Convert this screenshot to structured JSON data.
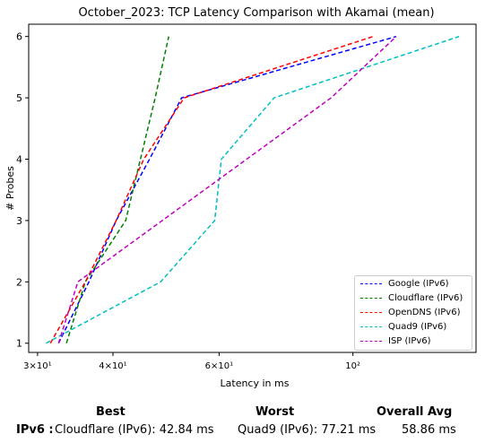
{
  "chart_data": {
    "type": "line",
    "title": "October_2023: TCP Latency Comparison with Akamai (mean)",
    "xlabel": "Latency in ms",
    "ylabel": "# Probes",
    "xscale": "log",
    "xlim": [
      29,
      160
    ],
    "ylim": [
      0.85,
      6.2
    ],
    "x_ticks": [
      {
        "value": 30,
        "label": "3×10¹"
      },
      {
        "value": 40,
        "label": "4×10¹"
      },
      {
        "value": 60,
        "label": "6×10¹"
      },
      {
        "value": 100,
        "label": "10²"
      }
    ],
    "y_ticks": [
      1,
      2,
      3,
      4,
      5,
      6
    ],
    "legend_position": "lower-right",
    "series": [
      {
        "name": "Google (IPv6)",
        "color": "#0000ff",
        "points": [
          [
            32.5,
            1
          ],
          [
            36.5,
            2
          ],
          [
            40.5,
            3
          ],
          [
            46,
            4
          ],
          [
            52,
            5
          ],
          [
            118,
            6
          ]
        ]
      },
      {
        "name": "Cloudflare (IPv6)",
        "color": "#008000",
        "points": [
          [
            33.5,
            1
          ],
          [
            36,
            2
          ],
          [
            42,
            3
          ],
          [
            47,
            5
          ],
          [
            49.5,
            6
          ]
        ]
      },
      {
        "name": "OpenDNS (IPv6)",
        "color": "#ff0000",
        "points": [
          [
            31.5,
            1
          ],
          [
            36,
            2
          ],
          [
            40.5,
            3
          ],
          [
            45,
            4
          ],
          [
            52.5,
            5
          ],
          [
            108,
            6
          ]
        ]
      },
      {
        "name": "Quad9 (IPv6)",
        "color": "#00bfbf",
        "points": [
          [
            31,
            1
          ],
          [
            48,
            2
          ],
          [
            59,
            3
          ],
          [
            60.5,
            4
          ],
          [
            74,
            5
          ],
          [
            150,
            6
          ]
        ]
      },
      {
        "name": "ISP (IPv6)",
        "color": "#bf00bf",
        "points": [
          [
            32.5,
            1
          ],
          [
            35,
            2
          ],
          [
            92,
            5
          ],
          [
            118,
            6
          ]
        ]
      }
    ]
  },
  "summary": {
    "headers": {
      "best": "Best",
      "worst": "Worst",
      "avg": "Overall Avg"
    },
    "row_label": "IPv6 :",
    "best": "Cloudflare (IPv6): 42.84 ms",
    "worst": "Quad9 (IPv6): 77.21 ms",
    "avg": "58.86 ms"
  }
}
